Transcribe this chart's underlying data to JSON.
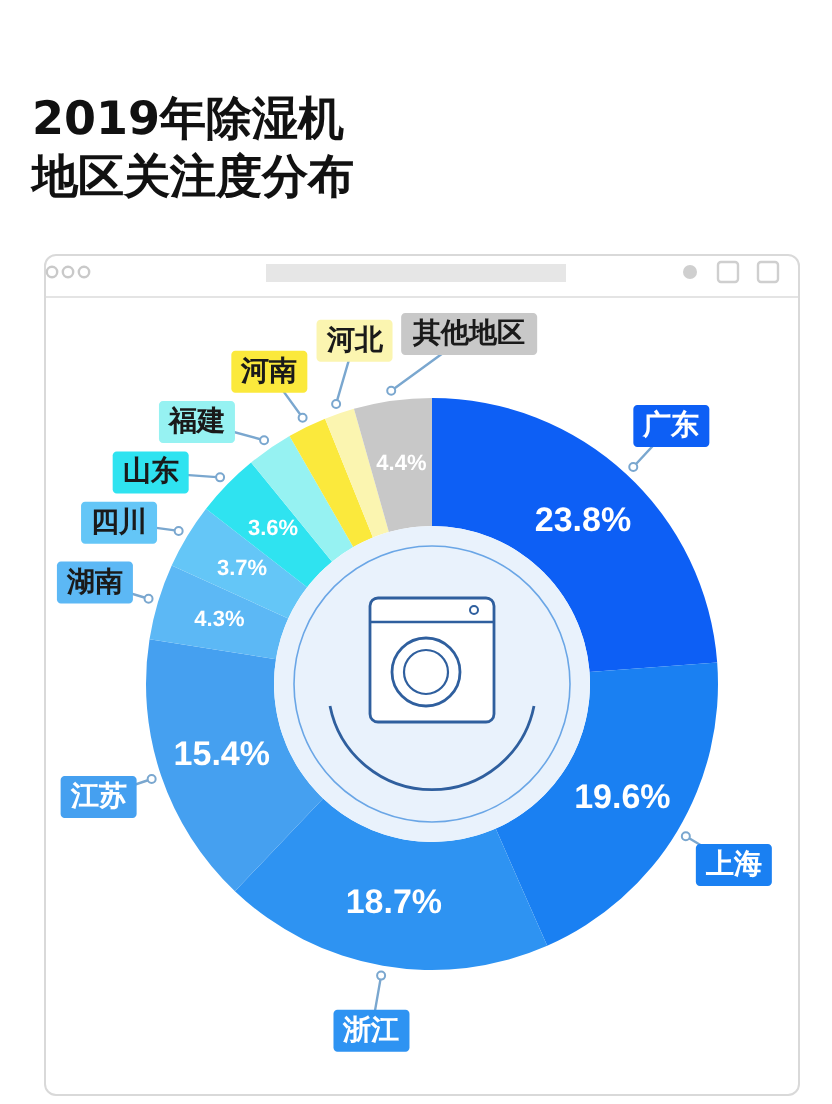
{
  "chart_data": {
    "type": "donut",
    "title": "2019年除湿机地区关注度分布",
    "categories": [
      "广东",
      "上海",
      "浙江",
      "江苏",
      "湖南",
      "四川",
      "山东",
      "福建",
      "河南",
      "河北",
      "其他地区"
    ],
    "values": [
      23.8,
      19.6,
      18.7,
      15.4,
      4.3,
      3.7,
      3.6,
      2.6,
      2.2,
      1.7,
      4.4
    ],
    "colors": [
      "#0d5ff5",
      "#1a80f2",
      "#2e93f2",
      "#45a0f0",
      "#5cb8f5",
      "#64c6f7",
      "#2fe3f0",
      "#96f2f2",
      "#fbe93c",
      "#fbf5b0",
      "#c8c8c8"
    ],
    "value_labels": [
      "23.8%",
      "19.6%",
      "18.7%",
      "15.4%",
      "4.3%",
      "3.7%",
      "3.6%",
      null,
      null,
      null,
      "4.4%"
    ]
  }
}
